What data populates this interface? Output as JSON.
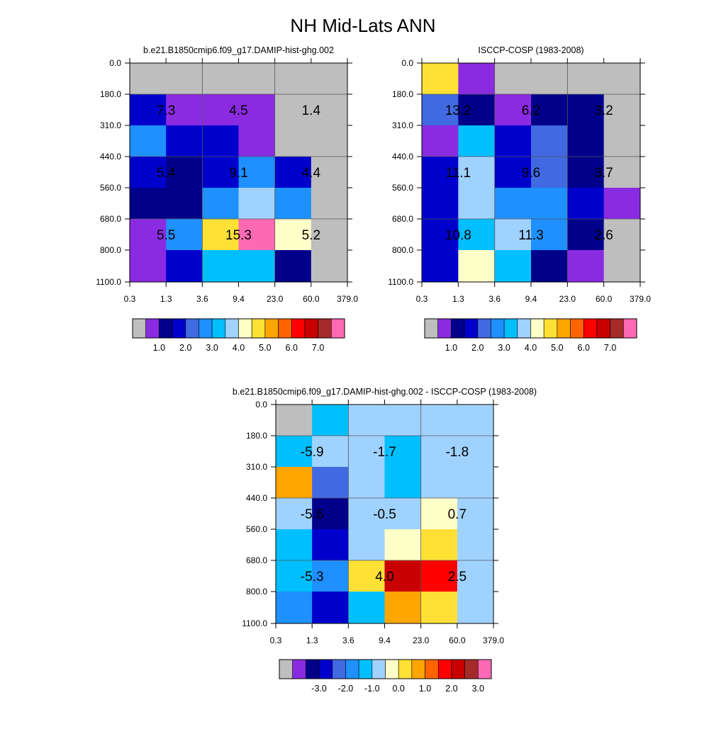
{
  "title": "NH Mid-Lats ANN",
  "chart_data": [
    {
      "type": "heatmap",
      "title": "b.e21.B1850cmip6.f09_g17.DAMIP-hist-ghg.002",
      "x_ticks": [
        "0.3",
        "1.3",
        "3.6",
        "9.4",
        "23.0",
        "60.0",
        "379.0"
      ],
      "y_ticks": [
        "0.0",
        "180.0",
        "310.0",
        "440.0",
        "560.0",
        "680.0",
        "800.0",
        "1100.0"
      ],
      "cell_color_index": [
        [
          0,
          0,
          0,
          0,
          0,
          0
        ],
        [
          3,
          1,
          1,
          1,
          0,
          0
        ],
        [
          5,
          3,
          3,
          1,
          0,
          0
        ],
        [
          3,
          2,
          3,
          5,
          3,
          0
        ],
        [
          2,
          2,
          5,
          7,
          5,
          0
        ],
        [
          1,
          5,
          9,
          15,
          8,
          0
        ],
        [
          1,
          3,
          6,
          6,
          2,
          0
        ]
      ],
      "box_labels": [
        {
          "row": 0,
          "col": 0,
          "text": "7.3"
        },
        {
          "row": 0,
          "col": 1,
          "text": "4.5"
        },
        {
          "row": 0,
          "col": 2,
          "text": "1.4"
        },
        {
          "row": 1,
          "col": 0,
          "text": "5.4"
        },
        {
          "row": 1,
          "col": 1,
          "text": "9.1"
        },
        {
          "row": 1,
          "col": 2,
          "text": "4.4"
        },
        {
          "row": 2,
          "col": 0,
          "text": "5.5"
        },
        {
          "row": 2,
          "col": 1,
          "text": "15.3"
        },
        {
          "row": 2,
          "col": 2,
          "text": "5.2"
        }
      ],
      "colorbar": {
        "colors": [
          "#bebebe",
          "#8a2be2",
          "#00008b",
          "#0000cd",
          "#4169e1",
          "#1e90ff",
          "#00bfff",
          "#a0d2ff",
          "#ffffc8",
          "#ffe135",
          "#ffa500",
          "#ff6400",
          "#ff0000",
          "#c80000",
          "#a52a2a",
          "#ff69b4"
        ],
        "labels": [
          "1.0",
          "2.0",
          "3.0",
          "4.0",
          "5.0",
          "6.0",
          "7.0"
        ],
        "label_start_boundary": 2
      }
    },
    {
      "type": "heatmap",
      "title": "ISCCP-COSP (1983-2008)",
      "x_ticks": [
        "0.3",
        "1.3",
        "3.6",
        "9.4",
        "23.0",
        "60.0",
        "379.0"
      ],
      "y_ticks": [
        "0.0",
        "180.0",
        "310.0",
        "440.0",
        "560.0",
        "680.0",
        "800.0",
        "1100.0"
      ],
      "cell_color_index": [
        [
          9,
          1,
          0,
          0,
          0,
          0
        ],
        [
          4,
          2,
          1,
          2,
          2,
          0
        ],
        [
          1,
          6,
          3,
          4,
          2,
          0
        ],
        [
          3,
          7,
          3,
          4,
          2,
          0
        ],
        [
          3,
          7,
          5,
          5,
          3,
          1
        ],
        [
          3,
          6,
          7,
          5,
          2,
          0
        ],
        [
          3,
          8,
          6,
          2,
          1,
          0
        ]
      ],
      "box_labels": [
        {
          "row": 0,
          "col": 0,
          "text": "13.2"
        },
        {
          "row": 0,
          "col": 1,
          "text": "6.2"
        },
        {
          "row": 0,
          "col": 2,
          "text": "3.2"
        },
        {
          "row": 1,
          "col": 0,
          "text": "11.1"
        },
        {
          "row": 1,
          "col": 1,
          "text": "9.6"
        },
        {
          "row": 1,
          "col": 2,
          "text": "3.7"
        },
        {
          "row": 2,
          "col": 0,
          "text": "10.8"
        },
        {
          "row": 2,
          "col": 1,
          "text": "11.3"
        },
        {
          "row": 2,
          "col": 2,
          "text": "2.6"
        }
      ],
      "colorbar": {
        "colors": [
          "#bebebe",
          "#8a2be2",
          "#00008b",
          "#0000cd",
          "#4169e1",
          "#1e90ff",
          "#00bfff",
          "#a0d2ff",
          "#ffffc8",
          "#ffe135",
          "#ffa500",
          "#ff6400",
          "#ff0000",
          "#c80000",
          "#a52a2a",
          "#ff69b4"
        ],
        "labels": [
          "1.0",
          "2.0",
          "3.0",
          "4.0",
          "5.0",
          "6.0",
          "7.0"
        ],
        "label_start_boundary": 2
      }
    },
    {
      "type": "heatmap",
      "title": "b.e21.B1850cmip6.f09_g17.DAMIP-hist-ghg.002 - ISCCP-COSP (1983-2008)",
      "x_ticks": [
        "0.3",
        "1.3",
        "3.6",
        "9.4",
        "23.0",
        "60.0",
        "379.0"
      ],
      "y_ticks": [
        "0.0",
        "180.0",
        "310.0",
        "440.0",
        "560.0",
        "680.0",
        "800.0",
        "1100.0"
      ],
      "cell_color_index": [
        [
          0,
          6,
          7,
          7,
          7,
          7
        ],
        [
          6,
          7,
          7,
          6,
          7,
          7
        ],
        [
          10,
          4,
          7,
          6,
          7,
          7
        ],
        [
          7,
          2,
          7,
          7,
          8,
          7
        ],
        [
          6,
          3,
          7,
          8,
          9,
          7
        ],
        [
          6,
          5,
          9,
          13,
          12,
          7
        ],
        [
          5,
          3,
          6,
          10,
          9,
          7
        ]
      ],
      "box_labels": [
        {
          "row": 0,
          "col": 0,
          "text": "-5.9"
        },
        {
          "row": 0,
          "col": 1,
          "text": "-1.7"
        },
        {
          "row": 0,
          "col": 2,
          "text": "-1.8"
        },
        {
          "row": 1,
          "col": 0,
          "text": "-5.6"
        },
        {
          "row": 1,
          "col": 1,
          "text": "-0.5"
        },
        {
          "row": 1,
          "col": 2,
          "text": "0.7"
        },
        {
          "row": 2,
          "col": 0,
          "text": "-5.3"
        },
        {
          "row": 2,
          "col": 1,
          "text": "4.0"
        },
        {
          "row": 2,
          "col": 2,
          "text": "2.5"
        }
      ],
      "colorbar": {
        "colors": [
          "#bebebe",
          "#8a2be2",
          "#00008b",
          "#0000cd",
          "#4169e1",
          "#1e90ff",
          "#00bfff",
          "#a0d2ff",
          "#ffffc8",
          "#ffe135",
          "#ffa500",
          "#ff6400",
          "#ff0000",
          "#c80000",
          "#a52a2a",
          "#ff69b4"
        ],
        "labels": [
          "-3.0",
          "-2.0",
          "-1.0",
          "0.0",
          "1.0",
          "2.0",
          "3.0"
        ],
        "label_start_boundary": 3
      }
    }
  ]
}
